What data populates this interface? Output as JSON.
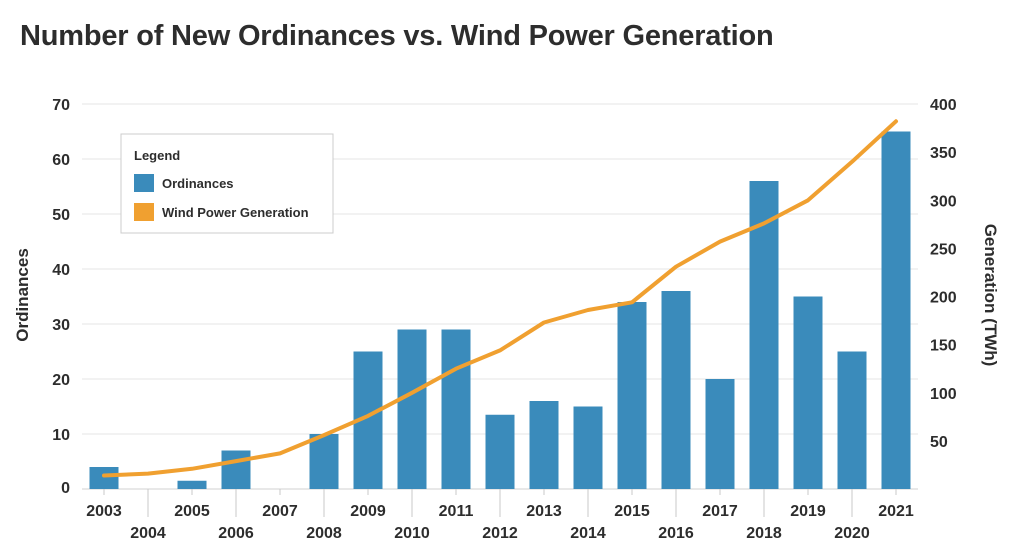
{
  "chart_data": {
    "type": "bar",
    "title": "Number of New Ordinances vs. Wind Power Generation",
    "categories": [
      "2003",
      "2004",
      "2005",
      "2006",
      "2007",
      "2008",
      "2009",
      "2010",
      "2011",
      "2012",
      "2013",
      "2014",
      "2015",
      "2016",
      "2017",
      "2018",
      "2019",
      "2020",
      "2021"
    ],
    "series": [
      {
        "name": "Ordinances",
        "type": "bar",
        "axis": "left",
        "color": "#3a8bbb",
        "values": [
          4,
          0,
          1.5,
          7,
          0,
          10,
          25,
          29,
          29,
          13.5,
          16,
          15,
          34,
          36,
          20,
          56,
          35,
          25,
          65
        ]
      },
      {
        "name": "Wind Power Generation",
        "type": "line",
        "axis": "right",
        "color": "#f0a030",
        "values": [
          14,
          16,
          21,
          29,
          37,
          56,
          76,
          100,
          125,
          144,
          173,
          186,
          194,
          231,
          257,
          276,
          300,
          340,
          382
        ]
      }
    ],
    "ylabel": "Ordinances",
    "ylabel_right": "Generation (TWh)",
    "ylim": [
      0,
      70
    ],
    "ylim_right": [
      0,
      400
    ],
    "yticks": [
      0,
      10,
      20,
      30,
      40,
      50,
      60,
      70
    ],
    "yticks_right": [
      50,
      100,
      150,
      200,
      250,
      300,
      350,
      400
    ],
    "legend": {
      "title": "Legend",
      "position": "top-left"
    },
    "grid": true
  }
}
